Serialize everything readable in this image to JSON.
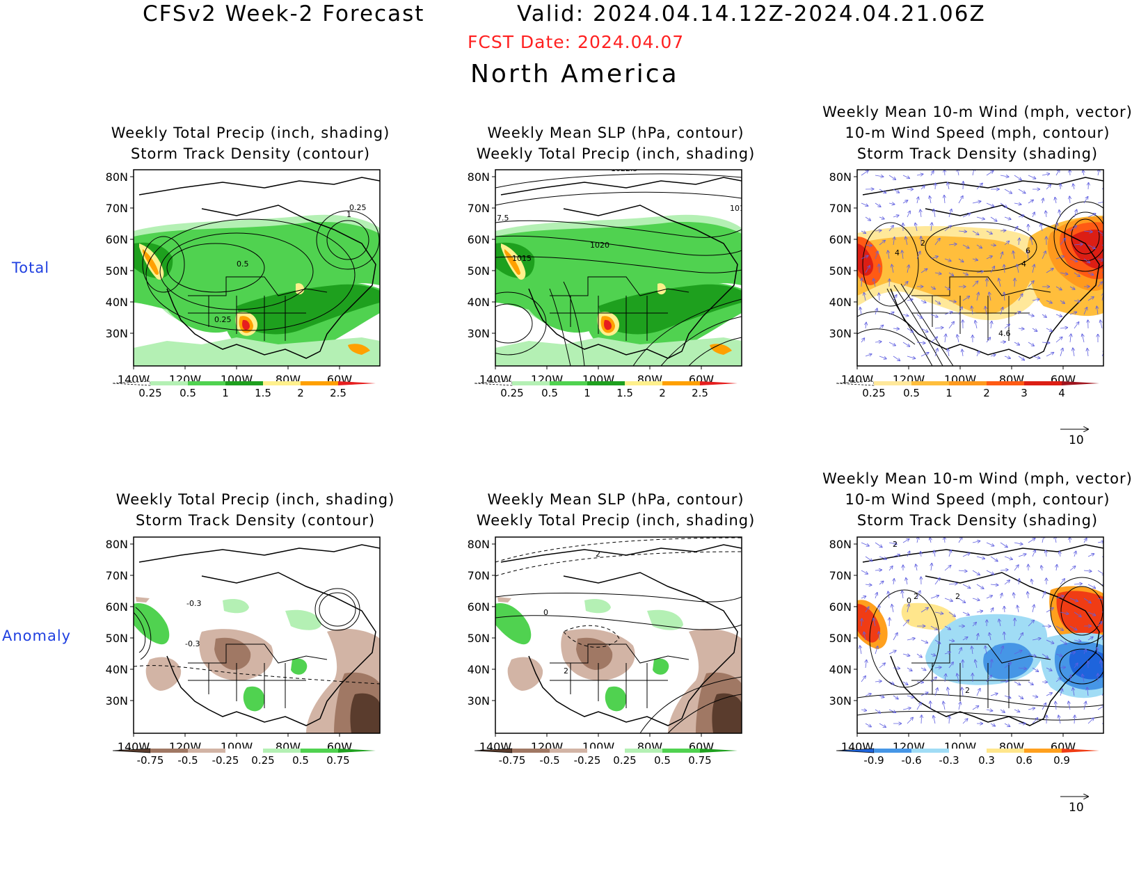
{
  "header": {
    "title": "CFSv2 Week-2 Forecast",
    "valid": "Valid: 2024.04.14.12Z-2024.04.21.06Z",
    "fcst_date": "FCST Date: 2024.04.07",
    "region": "North America"
  },
  "row_labels": [
    "Total",
    "Anomaly"
  ],
  "panel_titles": {
    "precip_storm": [
      "Weekly Total Precip (inch, shading)",
      "Storm Track Density (contour)"
    ],
    "slp_precip": [
      "Weekly Mean SLP (hPa, contour)",
      "Weekly Total Precip (inch, shading)"
    ],
    "wind_storm": [
      "Weekly Mean 10-m Wind (mph, vector)",
      "10-m Wind Speed (mph, contour)",
      "Storm Track Density (shading)"
    ]
  },
  "axes": {
    "lat_labels": [
      "80N",
      "70N",
      "60N",
      "50N",
      "40N",
      "30N"
    ],
    "lon_labels": [
      "140W",
      "120W",
      "100W",
      "80W",
      "60W"
    ]
  },
  "colorbars": {
    "precip_total": {
      "labels": [
        "0.25",
        "0.5",
        "1",
        "1.5",
        "2",
        "2.5"
      ],
      "colors": [
        "#ffffff",
        "#b4f0b4",
        "#50d250",
        "#1ea01e",
        "#fff08c",
        "#ffa000",
        "#e61e1e"
      ]
    },
    "storm_total": {
      "labels": [
        "0.25",
        "0.5",
        "1",
        "2",
        "3",
        "4"
      ],
      "colors": [
        "#ffffff",
        "#ffe89a",
        "#ffbe3c",
        "#ff9a1e",
        "#ff5a14",
        "#dc1e14",
        "#a0141e"
      ]
    },
    "precip_anom": {
      "labels": [
        "-0.75",
        "-0.5",
        "-0.25",
        "0.25",
        "0.5",
        "0.75"
      ],
      "colors": [
        "#5a3c2d",
        "#a07864",
        "#d2b4a5",
        "#ffffff",
        "#b4f0b4",
        "#50d250",
        "#1ea01e"
      ]
    },
    "storm_anom": {
      "labels": [
        "-0.9",
        "-0.6",
        "-0.3",
        "0.3",
        "0.6",
        "0.9"
      ],
      "colors": [
        "#1e64dc",
        "#4696e6",
        "#a0dcf5",
        "#ffffff",
        "#ffe68c",
        "#ffa01e",
        "#f03c14"
      ]
    }
  },
  "vector_reference": "10",
  "contour_labels": {
    "total_storm": [
      "0.5",
      "0.25",
      "1",
      "0.25"
    ],
    "total_slp": [
      "1022.5",
      "1017.5",
      "1015",
      "1020",
      "101"
    ],
    "total_wind": [
      "2",
      "4",
      "6",
      "4",
      "4.6"
    ],
    "anom_storm": [
      "-0.3",
      "-0.3"
    ],
    "anom_slp": [
      "2",
      "0",
      "0",
      "2"
    ],
    "anom_wind": [
      "2",
      "2",
      "0",
      "2",
      "2"
    ]
  }
}
